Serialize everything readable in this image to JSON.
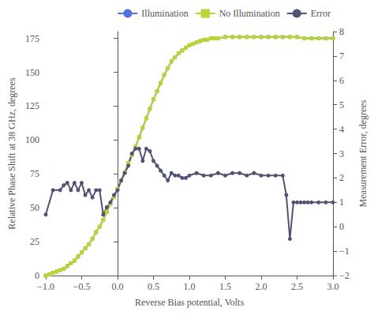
{
  "chart_data": {
    "type": "line",
    "xlabel": "Reverse Bias potential, Volts",
    "ylabel": "Relative Phase Shift at 38 GHz, degrees",
    "y2label": "Measurement Error, degrees",
    "xlim": [
      -1,
      3
    ],
    "xticks": [
      {
        "value": -1,
        "label": "−1.0"
      },
      {
        "value": -0.5,
        "label": "−0.5"
      },
      {
        "value": 0,
        "label": "0.0"
      },
      {
        "value": 0.5,
        "label": "0.5"
      },
      {
        "value": 1,
        "label": "1.0"
      },
      {
        "value": 1.5,
        "label": "1.5"
      },
      {
        "value": 2,
        "label": "2.0"
      },
      {
        "value": 2.5,
        "label": "2.5"
      },
      {
        "value": 3,
        "label": "3.0"
      }
    ],
    "ylim": [
      0,
      180
    ],
    "yticks": [
      0,
      25,
      50,
      75,
      100,
      125,
      150,
      175
    ],
    "y2lim": [
      -2,
      8
    ],
    "y2ticks": [
      {
        "value": -2,
        "label": "−2"
      },
      {
        "value": -1,
        "label": "−1"
      },
      0,
      1,
      2,
      3,
      4,
      5,
      6,
      7,
      8
    ],
    "grid": false,
    "legend": "upper right",
    "series": [
      {
        "name": "Illumination",
        "marker": "circle",
        "x": [
          -1.0,
          -0.95,
          -0.9,
          -0.85,
          -0.8,
          -0.75,
          -0.7,
          -0.65,
          -0.6,
          -0.55,
          -0.5,
          -0.45,
          -0.4,
          -0.35,
          -0.3,
          -0.25,
          -0.2,
          -0.15,
          -0.1,
          -0.05,
          0.0,
          0.05,
          0.1,
          0.15,
          0.2,
          0.25,
          0.3,
          0.35,
          0.4,
          0.45,
          0.5,
          0.55,
          0.6,
          0.65,
          0.7,
          0.75,
          0.8,
          0.85,
          0.9,
          0.95,
          1.0,
          1.05,
          1.1,
          1.15,
          1.2,
          1.25,
          1.3,
          1.35,
          1.4,
          1.5,
          1.6,
          1.7,
          1.8,
          1.9,
          2.0,
          2.1,
          2.2,
          2.3,
          2.4,
          2.5,
          2.6,
          2.7,
          2.8,
          2.9,
          3.0
        ],
        "values": [
          0,
          1,
          2,
          3,
          4,
          5,
          7,
          9,
          11,
          14,
          17,
          20,
          23,
          27,
          32,
          36,
          41,
          47,
          53,
          58,
          64,
          70,
          76,
          83,
          89,
          95,
          102,
          109,
          116,
          123,
          130,
          136,
          142,
          148,
          153,
          158,
          161,
          164,
          166,
          168,
          170,
          171,
          172,
          173,
          174,
          174,
          175,
          175,
          175,
          176,
          176,
          176,
          176,
          176,
          176,
          176,
          176,
          176,
          176,
          176,
          175,
          175,
          175,
          175,
          175
        ]
      },
      {
        "name": "No Illumination",
        "marker": "square",
        "x": [
          -1.0,
          -0.95,
          -0.9,
          -0.85,
          -0.8,
          -0.75,
          -0.7,
          -0.65,
          -0.6,
          -0.55,
          -0.5,
          -0.45,
          -0.4,
          -0.35,
          -0.3,
          -0.25,
          -0.2,
          -0.15,
          -0.1,
          -0.05,
          0.0,
          0.05,
          0.1,
          0.15,
          0.2,
          0.25,
          0.3,
          0.35,
          0.4,
          0.45,
          0.5,
          0.55,
          0.6,
          0.65,
          0.7,
          0.75,
          0.8,
          0.85,
          0.9,
          0.95,
          1.0,
          1.05,
          1.1,
          1.15,
          1.2,
          1.25,
          1.3,
          1.35,
          1.4,
          1.5,
          1.6,
          1.7,
          1.8,
          1.9,
          2.0,
          2.1,
          2.2,
          2.3,
          2.4,
          2.5,
          2.6,
          2.7,
          2.8,
          2.9,
          3.0
        ],
        "values": [
          0,
          1,
          2,
          3,
          4,
          5,
          7,
          9,
          11,
          14,
          17,
          20,
          23,
          27,
          32,
          36,
          41,
          47,
          53,
          58,
          64,
          70,
          76,
          83,
          89,
          95,
          102,
          109,
          116,
          123,
          130,
          136,
          142,
          148,
          153,
          158,
          161,
          164,
          166,
          168,
          170,
          171,
          172,
          173,
          174,
          174,
          175,
          175,
          175,
          176,
          176,
          176,
          176,
          176,
          176,
          176,
          176,
          176,
          176,
          176,
          175,
          175,
          175,
          175,
          175
        ]
      },
      {
        "name": "Error",
        "marker": "circle",
        "axis": "y2",
        "x": [
          -1.0,
          -0.9,
          -0.8,
          -0.75,
          -0.7,
          -0.65,
          -0.6,
          -0.55,
          -0.5,
          -0.45,
          -0.4,
          -0.35,
          -0.3,
          -0.25,
          -0.2,
          -0.15,
          -0.1,
          -0.05,
          0.0,
          0.05,
          0.1,
          0.15,
          0.2,
          0.25,
          0.3,
          0.35,
          0.4,
          0.45,
          0.5,
          0.55,
          0.6,
          0.65,
          0.7,
          0.75,
          0.8,
          0.85,
          0.9,
          0.95,
          1.0,
          1.1,
          1.2,
          1.3,
          1.4,
          1.5,
          1.6,
          1.7,
          1.8,
          1.9,
          2.0,
          2.1,
          2.2,
          2.3,
          2.35,
          2.4,
          2.45,
          2.5,
          2.55,
          2.6,
          2.65,
          2.7,
          2.8,
          2.9,
          3.0
        ],
        "values": [
          0.5,
          1.5,
          1.5,
          1.7,
          1.8,
          1.5,
          1.8,
          1.5,
          1.8,
          1.3,
          1.5,
          1.2,
          1.5,
          1.5,
          0.5,
          0.8,
          1.0,
          1.3,
          1.5,
          1.9,
          2.2,
          2.5,
          3.0,
          3.2,
          3.2,
          2.7,
          3.2,
          3.1,
          2.7,
          2.5,
          2.3,
          2.1,
          1.9,
          2.2,
          2.1,
          2.1,
          2.0,
          2.0,
          2.1,
          2.2,
          2.1,
          2.1,
          2.2,
          2.1,
          2.2,
          2.2,
          2.1,
          2.2,
          2.1,
          2.1,
          2.1,
          2.1,
          1.3,
          -0.5,
          1.0,
          1.0,
          1.0,
          1.0,
          1.0,
          1.0,
          1.0,
          1.0,
          1.0
        ]
      }
    ]
  }
}
